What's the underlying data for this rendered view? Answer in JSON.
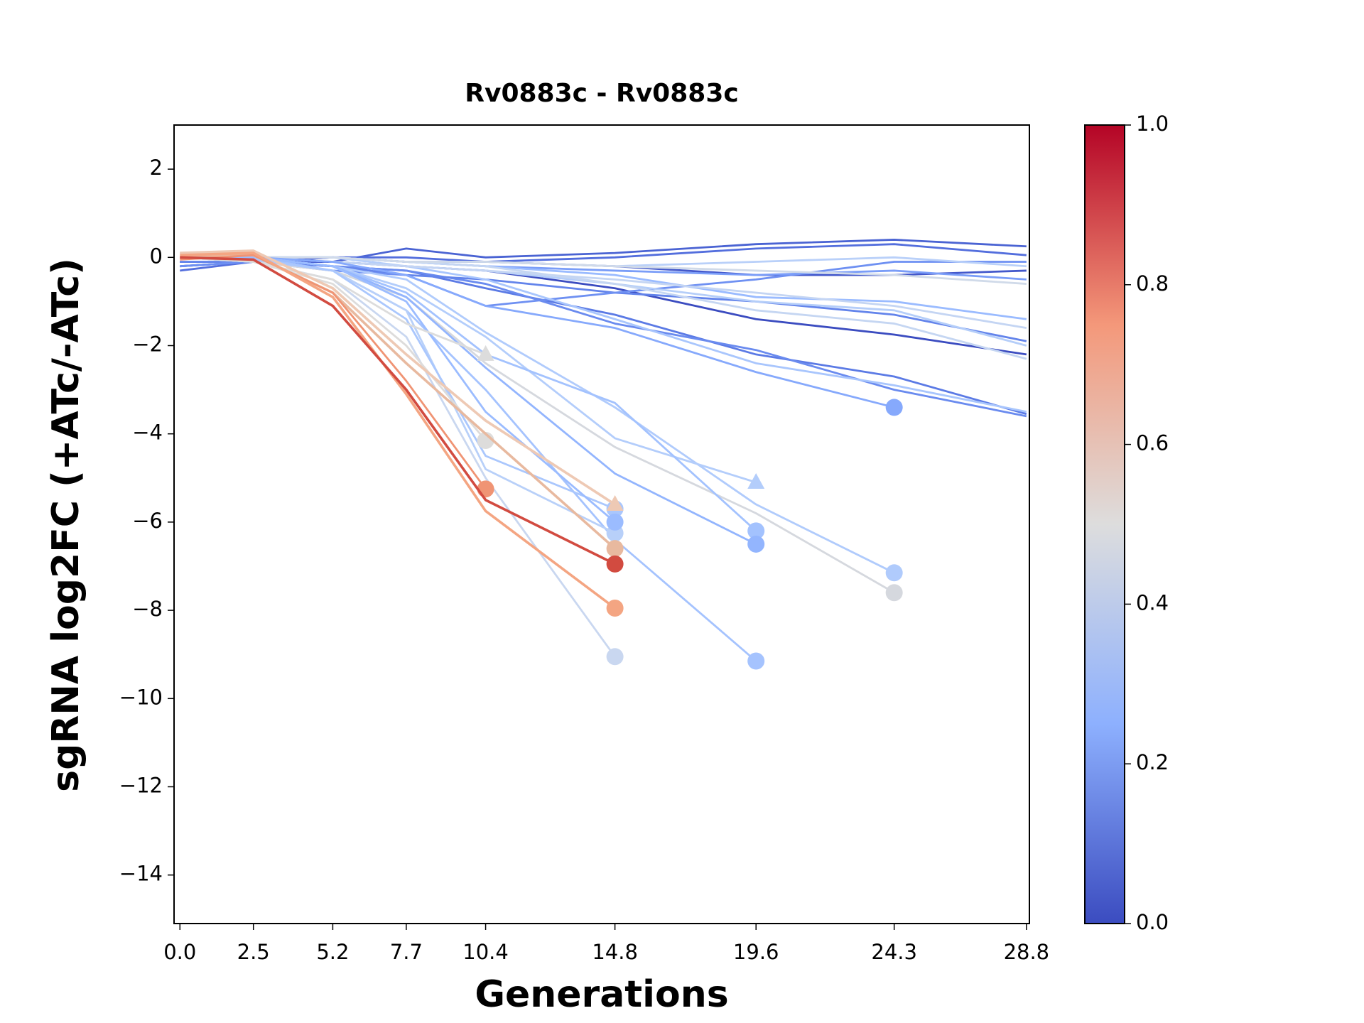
{
  "chart_data": {
    "type": "line",
    "title": "Rv0883c - Rv0883c",
    "xlabel": "Generations",
    "ylabel": "sgRNA log2FC (+ATc/-ATc)",
    "x": [
      0,
      2.5,
      5.2,
      7.7,
      10.4,
      14.8,
      19.6,
      24.3,
      28.8
    ],
    "xlim": [
      -0.2,
      28.9
    ],
    "xticks": [
      {
        "value": 0,
        "label": "0.0"
      },
      2.5,
      5.2,
      7.7,
      10.4,
      14.8,
      19.6,
      24.3,
      28.8
    ],
    "ylim": [
      -15.1,
      3
    ],
    "yticks": [
      {
        "value": -14,
        "label": "−14"
      },
      {
        "value": -12,
        "label": "−12"
      },
      {
        "value": -10,
        "label": "−10"
      },
      {
        "value": -8,
        "label": "−8"
      },
      {
        "value": -6,
        "label": "−6"
      },
      {
        "value": -4,
        "label": "−4"
      },
      {
        "value": -2,
        "label": "−2"
      },
      0,
      2
    ],
    "series": [
      {
        "color": "#3b4cc0",
        "values": [
          -0.1,
          -0.1,
          -0.1,
          -0.2,
          -0.3,
          -0.7,
          -1.4,
          -1.75,
          -2.2
        ]
      },
      {
        "color": "#4a63d3",
        "values": [
          -0.2,
          -0.1,
          -0.1,
          0.2,
          0.0,
          0.1,
          0.3,
          0.4,
          0.25
        ]
      },
      {
        "color": "#536edd",
        "values": [
          -0.3,
          -0.1,
          0,
          0,
          -0.1,
          0,
          0.2,
          0.3,
          0.05
        ]
      },
      {
        "color": "#4358cb",
        "values": [
          -0.1,
          -0.1,
          0,
          -0.1,
          -0.1,
          -0.2,
          -0.4,
          -0.4,
          -0.3
        ]
      },
      {
        "color": "#5b7ae5",
        "values": [
          -0.2,
          -0.1,
          -0.2,
          -0.3,
          -0.7,
          -1.3,
          -2.2,
          -2.7,
          -3.55
        ]
      },
      {
        "color": "#6a8bef",
        "values": [
          -0.1,
          -0.1,
          -0.2,
          -0.3,
          -0.6,
          -1.5,
          -2.1,
          -3.0,
          -3.6
        ]
      },
      {
        "color": "#6384eb",
        "values": [
          0,
          -0.1,
          -0.2,
          -0.4,
          -0.5,
          -0.8,
          -1.0,
          -1.3,
          -1.9
        ]
      },
      {
        "color": "#6e90f2",
        "values": [
          -0.2,
          -0.1,
          -0.3,
          -0.4,
          -1.1,
          -0.8,
          -0.5,
          -0.1,
          -0.1
        ]
      },
      {
        "color": "#7a9df8",
        "values": [
          0,
          0,
          0,
          -0.1,
          -0.2,
          -0.3,
          -0.4,
          -0.3,
          -0.5
        ]
      },
      {
        "color": "#9abbff",
        "values": [
          0,
          0,
          0,
          -0.1,
          -0.2,
          -0.4,
          -0.9,
          -1.0,
          -1.4
        ]
      },
      {
        "color": "#a9c6fd",
        "values": [
          0,
          0,
          -0.1,
          -0.2,
          -0.5,
          -1.4,
          -2.4,
          -2.9,
          -3.5
        ]
      },
      {
        "color": "#b5cef9",
        "values": [
          0,
          0,
          0,
          -0.2,
          -0.3,
          -0.6,
          -1.0,
          -1.2,
          -2.0
        ]
      },
      {
        "color": "#b9d0f9",
        "values": [
          0,
          0,
          0,
          -0.1,
          -0.1,
          -0.2,
          -0.1,
          0,
          -0.2
        ]
      },
      {
        "color": "#c4d5f3",
        "values": [
          0,
          0,
          -0.1,
          -0.2,
          -0.3,
          -0.5,
          -0.8,
          -1.1,
          -1.6
        ]
      },
      {
        "color": "#c5d6f2",
        "values": [
          0.1,
          0,
          0,
          -0.1,
          -0.2,
          -0.6,
          -1.2,
          -1.5,
          -2.3
        ]
      },
      {
        "color": "#d0dae9",
        "values": [
          0.1,
          0,
          0,
          -0.1,
          -0.1,
          -0.2,
          -0.3,
          -0.4,
          -0.6
        ]
      },
      {
        "color": "#86a9fc",
        "marker": "o",
        "values": [
          0,
          0,
          -0.1,
          -0.4,
          -1.1,
          -1.6,
          -2.6,
          -3.4,
          null
        ]
      },
      {
        "color": "#b0cbfc",
        "marker": "o",
        "values": [
          0,
          0,
          -0.2,
          -0.5,
          -1.7,
          -3.4,
          -5.6,
          -7.15,
          null
        ]
      },
      {
        "color": "#d5d8de",
        "marker": "o",
        "values": [
          0,
          -0.1,
          -0.3,
          -0.9,
          -2.4,
          -4.3,
          -5.8,
          -7.6,
          null
        ]
      },
      {
        "color": "#b3cdfb",
        "marker": "^",
        "values": [
          0,
          0,
          -0.2,
          -0.7,
          -1.8,
          -4.1,
          -5.1,
          null,
          null
        ]
      },
      {
        "color": "#a3c2fe",
        "marker": "o",
        "values": [
          0,
          0,
          -0.2,
          -0.8,
          -2.2,
          -3.3,
          -6.2,
          null,
          null
        ]
      },
      {
        "color": "#93b5fe",
        "marker": "o",
        "values": [
          0,
          0,
          -0.2,
          -0.9,
          -2.5,
          -4.9,
          -6.5,
          null,
          null
        ]
      },
      {
        "color": "#a5c3fe",
        "marker": "o",
        "values": [
          0,
          0,
          -0.3,
          -1.2,
          -3.0,
          -6.4,
          -9.15,
          null,
          null
        ]
      },
      {
        "color": "#c9d7f0",
        "marker": "o",
        "values": [
          0,
          -0.1,
          -0.5,
          -1.8,
          -5.0,
          -9.05,
          null,
          null,
          null
        ]
      },
      {
        "color": "#b8d0f9",
        "marker": "o",
        "values": [
          0,
          -0.05,
          -0.3,
          -1.2,
          -4.8,
          -6.25,
          null,
          null,
          null
        ]
      },
      {
        "color": "#aac7fd",
        "marker": "o",
        "values": [
          0,
          -0.05,
          -0.3,
          -1.4,
          -4.5,
          -5.7,
          null,
          null,
          null
        ]
      },
      {
        "color": "#9bbcff",
        "marker": "o",
        "values": [
          0,
          0,
          -0.2,
          -1.0,
          -3.5,
          -6.0,
          null,
          null,
          null
        ]
      },
      {
        "color": "#dcdcdc",
        "marker": "^",
        "values": [
          0,
          -0.1,
          -0.5,
          -1.5,
          -2.2,
          null,
          null,
          null,
          null
        ]
      },
      {
        "color": "#dddcdb",
        "marker": "o",
        "values": [
          0,
          -0.1,
          -0.6,
          -2.0,
          -4.15,
          null,
          null,
          null,
          null
        ]
      },
      {
        "color": "#e8b99f",
        "marker": "o",
        "values": [
          0,
          0.05,
          -0.8,
          -2.4,
          -4.0,
          -6.6,
          null,
          null,
          null
        ]
      },
      {
        "color": "#eec9b4",
        "marker": "^",
        "values": [
          0.1,
          0.15,
          -0.7,
          -2.2,
          -3.7,
          -5.6,
          null,
          null,
          null
        ]
      },
      {
        "color": "#f09474",
        "marker": "o",
        "values": [
          -0.05,
          0.05,
          -0.8,
          -2.8,
          -5.25,
          null,
          null,
          null,
          null
        ]
      },
      {
        "color": "#f4a582",
        "marker": "o",
        "values": [
          0.05,
          0.1,
          -0.9,
          -3.1,
          -5.75,
          -7.95,
          null,
          null,
          null
        ]
      },
      {
        "color": "#d24b40",
        "marker": "o",
        "values": [
          0,
          -0.05,
          -1.1,
          -3.0,
          -5.5,
          -6.95,
          null,
          null,
          null
        ]
      }
    ],
    "colorbar": {
      "lim": [
        0,
        1
      ],
      "ticks": [
        {
          "value": 0,
          "label": "0.0"
        },
        0.2,
        0.4,
        0.6,
        0.8,
        {
          "value": 1,
          "label": "1.0"
        }
      ],
      "colors": [
        "#3b4cc0",
        "#8db0fe",
        "#dddddd",
        "#f4987a",
        "#b40426"
      ]
    }
  }
}
